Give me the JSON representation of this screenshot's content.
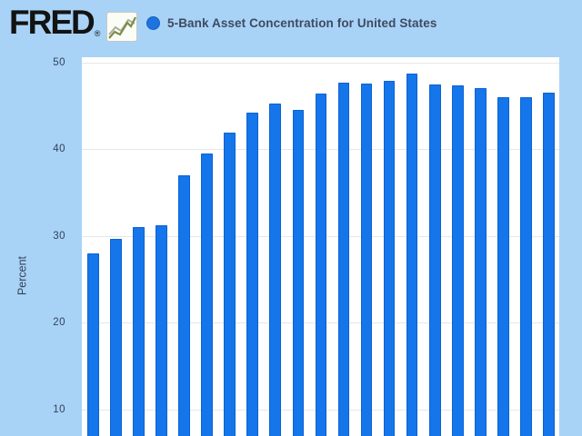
{
  "header": {
    "logo_text": "FRED",
    "registered_mark": "®",
    "series_title": "5-Bank Asset Concentration for United States"
  },
  "y_axis": {
    "label": "Percent"
  },
  "chart_data": {
    "type": "bar",
    "title": "5-Bank Asset Concentration for United States",
    "ylabel": "Percent",
    "values": [
      28.0,
      29.6,
      31.0,
      31.2,
      37.0,
      39.5,
      41.9,
      44.2,
      45.2,
      44.5,
      46.4,
      47.6,
      47.5,
      47.9,
      48.7,
      47.4,
      47.3,
      47.0,
      46.0,
      46.0,
      46.5
    ],
    "y_ticks": [
      50,
      40,
      30,
      20,
      10
    ],
    "ylim_visible": [
      6.5,
      50.6
    ],
    "x_tick_labels_visible": false,
    "grid": true,
    "legend_position": "top-left-header",
    "bar_count": 21,
    "colors": {
      "bar_fill": "#1476ea",
      "bar_border": "#0d62d0",
      "page_background": "#a8d3f6",
      "plot_background": "#ffffff",
      "gridline": "#e7e7e7",
      "text": "#34415a",
      "title_text": "#3e4a61",
      "logo_text": "#131313",
      "legend_dot": "#1d74e0",
      "icon_line_olive": "#7c8c4d",
      "icon_line_gray": "#a9b294"
    }
  }
}
